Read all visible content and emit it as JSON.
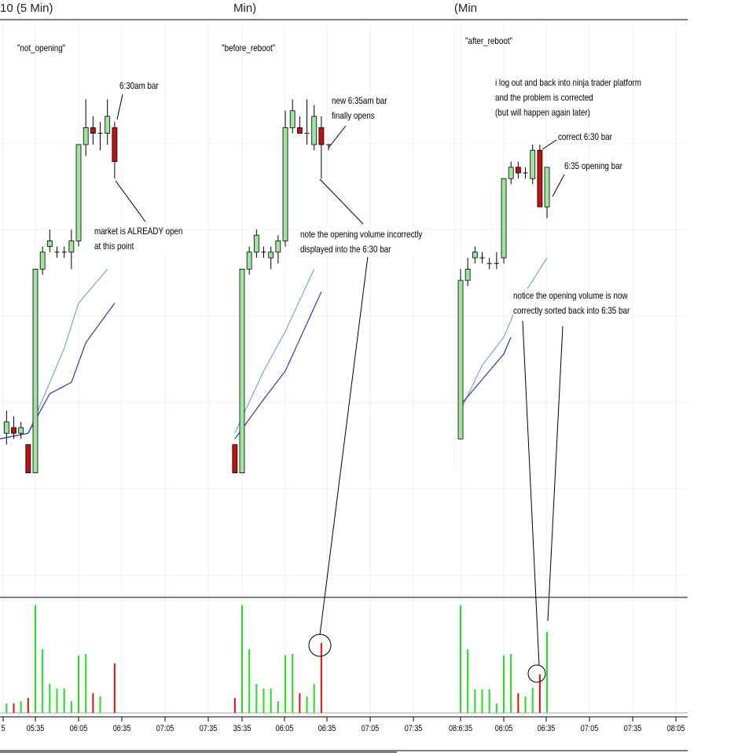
{
  "titles": [
    "10 (5 Min)",
    "Min)",
    "Min)"
  ],
  "chart_data": {
    "type": "candlestick",
    "colors": {
      "up": "#9ee69e",
      "down": "#c01010",
      "vol_up": "#20e020",
      "vol_down": "#e01010",
      "ma_fast": "#7aa5d8",
      "ma_slow": "#3434b0"
    },
    "grid": true,
    "panels": [
      {
        "label": "\"not_opening\"",
        "times": [
          "05:10",
          "05:15",
          "05:20",
          "05:25",
          "05:30",
          "05:35",
          "05:40",
          "05:45",
          "05:50",
          "05:55",
          "06:00",
          "06:05",
          "06:10",
          "06:15",
          "06:20",
          "06:25",
          "06:30"
        ],
        "ohlc": [
          [
            30,
            33,
            28,
            31
          ],
          [
            29,
            33,
            27,
            31
          ],
          [
            30,
            32,
            28,
            29
          ],
          [
            29,
            31,
            28,
            30
          ],
          [
            27,
            27,
            22,
            22
          ],
          [
            22,
            58,
            22,
            58
          ],
          [
            58,
            62,
            57,
            61
          ],
          [
            62,
            65,
            61,
            63
          ],
          [
            61,
            62,
            60,
            61
          ],
          [
            61,
            62,
            60,
            61
          ],
          [
            61,
            65,
            58,
            63
          ],
          [
            63,
            80,
            62,
            80
          ],
          [
            80,
            88,
            78,
            83
          ],
          [
            83,
            85,
            80,
            82
          ],
          [
            82,
            84,
            79,
            82
          ],
          [
            82,
            88,
            80,
            85
          ],
          [
            83,
            84,
            74,
            77
          ]
        ],
        "volume": [
          14,
          12,
          12,
          15,
          19,
          137,
          81,
          37,
          31,
          31,
          15,
          73,
          75,
          25,
          21,
          0,
          63
        ],
        "ma_fast": [
          [
            "05:10",
            28
          ],
          [
            "05:30",
            29
          ],
          [
            "05:40",
            35
          ],
          [
            "05:55",
            44
          ],
          [
            "06:05",
            52
          ],
          [
            "06:25",
            58
          ]
        ],
        "ma_slow": [
          [
            "05:10",
            28
          ],
          [
            "05:30",
            29
          ],
          [
            "05:45",
            36
          ],
          [
            "06:00",
            38
          ],
          [
            "06:10",
            45
          ],
          [
            "06:30",
            52
          ]
        ]
      },
      {
        "label": "\"before_reboot\"",
        "times": [
          "05:30",
          "05:35",
          "05:40",
          "05:45",
          "05:50",
          "05:55",
          "06:00",
          "06:05",
          "06:10",
          "06:15",
          "06:20",
          "06:25",
          "06:30",
          "06:35"
        ],
        "ohlc": [
          [
            27,
            27,
            22,
            22
          ],
          [
            22,
            58,
            22,
            58
          ],
          [
            58,
            62,
            57,
            61
          ],
          [
            61,
            65,
            60,
            64
          ],
          [
            61,
            62,
            60,
            61
          ],
          [
            60,
            62,
            58,
            61
          ],
          [
            61,
            64,
            59,
            63
          ],
          [
            63,
            86,
            62,
            83
          ],
          [
            83,
            88,
            82,
            86
          ],
          [
            83,
            85,
            82,
            82
          ],
          [
            82,
            88,
            80,
            82
          ],
          [
            80,
            87,
            79,
            85
          ],
          [
            83,
            85,
            74,
            80
          ],
          [
            80,
            80,
            79,
            80
          ]
        ],
        "volume": [
          19,
          137,
          81,
          37,
          31,
          31,
          15,
          73,
          75,
          25,
          21,
          37,
          89,
          0
        ],
        "ma_fast": [
          [
            "05:30",
            29
          ],
          [
            "05:50",
            40
          ],
          [
            "06:05",
            47
          ],
          [
            "06:25",
            58
          ]
        ],
        "ma_slow": [
          [
            "05:30",
            28
          ],
          [
            "05:50",
            35
          ],
          [
            "06:05",
            40
          ],
          [
            "06:30",
            54
          ]
        ]
      },
      {
        "label": "\"after_reboot\"",
        "times": [
          "05:35",
          "05:40",
          "05:45",
          "05:50",
          "05:55",
          "06:00",
          "06:05",
          "06:10",
          "06:15",
          "06:20",
          "06:25",
          "06:30",
          "06:35"
        ],
        "ohlc": [
          [
            28,
            58,
            28,
            56
          ],
          [
            56,
            60,
            55,
            58
          ],
          [
            60,
            62,
            59,
            61
          ],
          [
            60,
            61,
            59,
            60
          ],
          [
            59,
            60,
            58,
            59
          ],
          [
            59,
            61,
            58,
            59
          ],
          [
            60,
            74,
            59,
            74
          ],
          [
            74,
            77,
            73,
            76
          ],
          [
            76,
            77,
            74,
            75
          ],
          [
            75,
            76,
            74,
            75
          ],
          [
            74,
            80,
            73,
            79
          ],
          [
            79,
            80,
            69,
            69
          ],
          [
            69,
            76,
            67,
            76
          ]
        ],
        "volume": [
          137,
          81,
          30,
          30,
          30,
          12,
          73,
          75,
          25,
          21,
          32,
          49,
          103
        ],
        "ma_fast": [
          [
            "05:35",
            33
          ],
          [
            "05:50",
            41
          ],
          [
            "06:05",
            46
          ],
          [
            "06:15",
            52
          ],
          [
            "06:35",
            60
          ]
        ],
        "ma_slow": [
          [
            "05:35",
            34
          ],
          [
            "05:55",
            40
          ],
          [
            "06:05",
            43
          ],
          [
            "06:10",
            46
          ]
        ]
      }
    ],
    "x_tick_labels": [
      "5",
      "05:35",
      "06:05",
      "06:35",
      "07:05",
      "07:35",
      "35:35",
      "06:05",
      "06:35",
      "07:05",
      "07:35",
      "08:6:35",
      "06:05",
      "06:35",
      "07:05",
      "07:35",
      "08:05"
    ]
  },
  "annotations": {
    "bar630": "6:30am bar",
    "already_open": "market is ALREADY open\nat this point",
    "new635": "new 6:35am bar\nfinally opens",
    "incorrect": "note the opening volume incorrectly\ndisplayed into the 6:30 bar",
    "logout": "i log out and back into ninja trader platform\nand the problem is corrected\n(but will happen again later)",
    "correct630": "correct 6:30 bar",
    "opening635": "6:35 opening bar",
    "sorted": "notice the opening volume is now\ncorrectly sorted back into 6:35 bar"
  }
}
